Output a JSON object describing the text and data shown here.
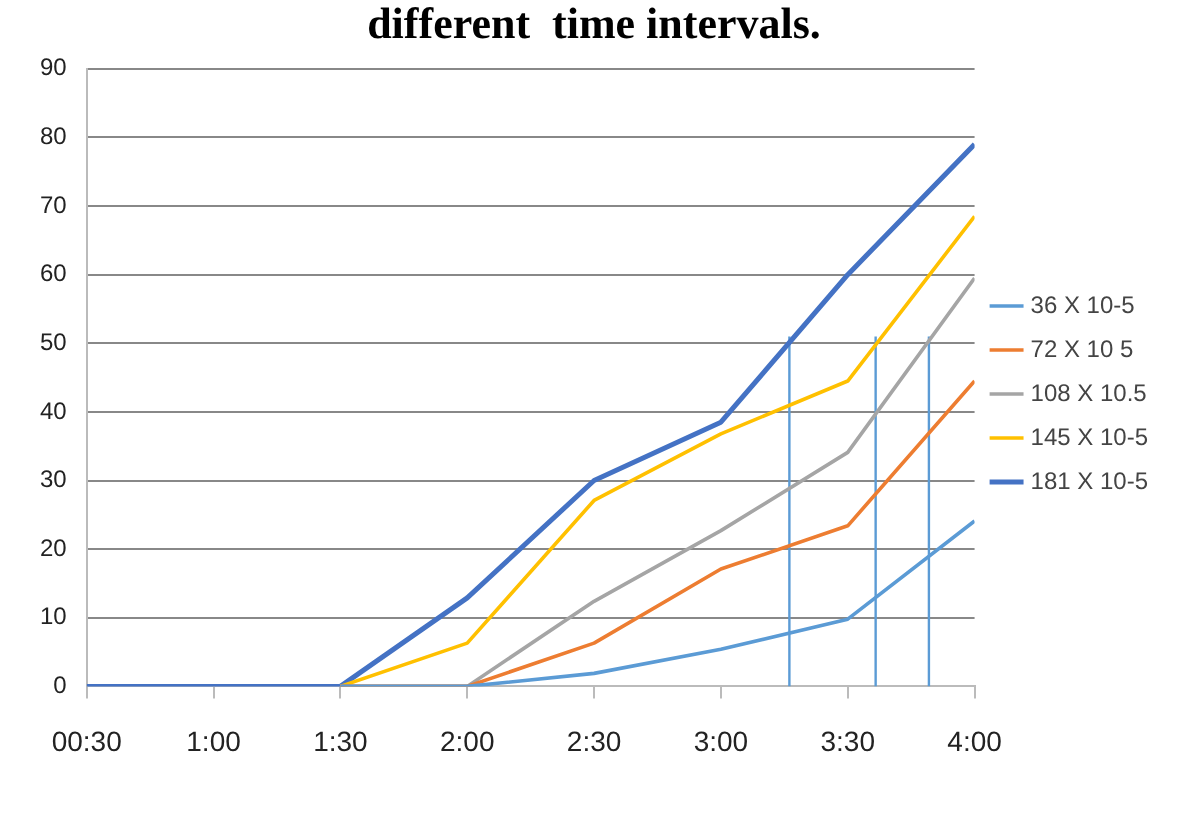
{
  "chart_data": {
    "type": "line",
    "title": "different  time intervals.",
    "x": [
      0.5,
      1,
      1.5,
      2,
      2.5,
      3,
      3.5,
      4
    ],
    "xlim": [
      0.5,
      4
    ],
    "xticks": [
      {
        "value": 0.5,
        "label": "00:30"
      },
      {
        "value": 1,
        "label": "1:00"
      },
      {
        "value": 1.5,
        "label": "1:30"
      },
      {
        "value": 2,
        "label": "2:00"
      },
      {
        "value": 2.5,
        "label": "2:30"
      },
      {
        "value": 3,
        "label": "3:00"
      },
      {
        "value": 3.5,
        "label": "3:30"
      },
      {
        "value": 4,
        "label": "4:00"
      }
    ],
    "ylim": [
      0,
      90
    ],
    "yticks": [
      0,
      10,
      20,
      30,
      40,
      50,
      60,
      70,
      80,
      90
    ],
    "grid": "y",
    "legend": "right",
    "marker": "none",
    "line_style": "solid",
    "series": [
      {
        "name": "36 X 10-5",
        "color": "#5b9bd5",
        "values": [
          null,
          null,
          0,
          0,
          1.9,
          5.4,
          9.8,
          24.1
        ]
      },
      {
        "name": "72 X 10 5",
        "color": "#ed7d31",
        "values": [
          null,
          null,
          0,
          0,
          6.3,
          17.1,
          23.4,
          44.5
        ]
      },
      {
        "name": "108 X 10.5",
        "color": "#a5a5a5",
        "values": [
          null,
          null,
          0,
          0,
          12.4,
          22.7,
          34.1,
          59.5
        ]
      },
      {
        "name": "145 X 10-5",
        "color": "#ffc000",
        "values": [
          null,
          null,
          0,
          6.3,
          27.1,
          36.8,
          44.5,
          68.5
        ]
      },
      {
        "name": "181 X 10-5",
        "color": "#4472c4",
        "values": [
          0,
          0,
          0,
          12.9,
          30,
          38.5,
          60,
          79
        ]
      },
      {
        "type": "line",
        "color": "#5b9bd5",
        "x": [
          3.27,
          3.27
        ],
        "values": [
          0,
          51
        ]
      },
      {
        "type": "line",
        "color": "#5b9bd5",
        "x": [
          3.61,
          3.61
        ],
        "values": [
          0,
          51
        ]
      },
      {
        "type": "line",
        "color": "#5b9bd5",
        "x": [
          3.82,
          3.82
        ],
        "values": [
          0,
          51
        ]
      }
    ]
  }
}
